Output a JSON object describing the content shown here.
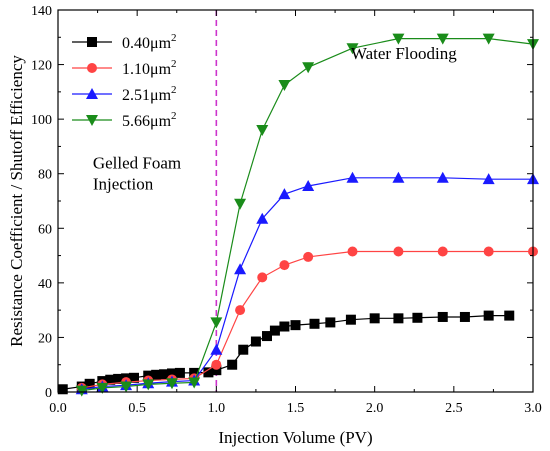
{
  "chart_data": {
    "type": "line",
    "xlabel": "Injection Volume (PV)",
    "ylabel": "Resistance Coefficient / Shutoff Efficiency",
    "xlim": [
      0.0,
      3.0
    ],
    "ylim": [
      0,
      140
    ],
    "xticks": [
      0.0,
      0.5,
      1.0,
      1.5,
      2.0,
      2.5,
      3.0
    ],
    "xtick_labels": [
      "0.0",
      "0.5",
      "1.0",
      "1.5",
      "2.0",
      "2.5",
      "3.0"
    ],
    "yticks": [
      0,
      20,
      40,
      60,
      80,
      100,
      120,
      140
    ],
    "ytick_labels": [
      "0",
      "20",
      "40",
      "60",
      "80",
      "100",
      "120",
      "140"
    ],
    "grid": false,
    "legend_position": "top-left",
    "divider_x": 1.0,
    "divider_color": "#cc33cc",
    "annotations": [
      {
        "lines": [
          "Gelled Foam",
          "Injection"
        ],
        "x": 0.22,
        "y": 82
      },
      {
        "lines": [
          "Water Flooding"
        ],
        "x": 1.85,
        "y": 122
      }
    ],
    "series": [
      {
        "name": "0.40μm²",
        "legend_base": "0.40μm",
        "legend_sup": "2",
        "color": "#000000",
        "marker": "square",
        "x": [
          0.03,
          0.15,
          0.2,
          0.28,
          0.33,
          0.38,
          0.43,
          0.48,
          0.57,
          0.62,
          0.67,
          0.72,
          0.77,
          0.86,
          0.95,
          1.0,
          1.1,
          1.17,
          1.25,
          1.32,
          1.37,
          1.43,
          1.5,
          1.62,
          1.72,
          1.85,
          2.0,
          2.15,
          2.27,
          2.43,
          2.57,
          2.72,
          2.85
        ],
        "y": [
          1.0,
          2.0,
          3.0,
          4.0,
          4.5,
          4.8,
          5.0,
          5.2,
          6.0,
          6.3,
          6.5,
          6.8,
          7.0,
          7.0,
          7.2,
          8.0,
          10.0,
          15.5,
          18.5,
          20.5,
          22.5,
          24.0,
          24.5,
          25.0,
          25.5,
          26.5,
          27.0,
          27.0,
          27.2,
          27.5,
          27.5,
          28.0,
          28.0
        ]
      },
      {
        "name": "1.10μm²",
        "legend_base": "1.10μm",
        "legend_sup": "2",
        "color": "#ff4444",
        "marker": "circle",
        "x": [
          0.15,
          0.28,
          0.43,
          0.57,
          0.72,
          0.86,
          1.0,
          1.15,
          1.29,
          1.43,
          1.58,
          1.86,
          2.15,
          2.43,
          2.72,
          3.0
        ],
        "y": [
          1.5,
          2.8,
          3.6,
          4.2,
          4.6,
          5.0,
          10.0,
          30.0,
          42.0,
          46.5,
          49.5,
          51.5,
          51.5,
          51.5,
          51.5,
          51.5
        ]
      },
      {
        "name": "2.51μm²",
        "legend_base": "2.51μm",
        "legend_sup": "2",
        "color": "#1a1aff",
        "marker": "triangle-up",
        "x": [
          0.15,
          0.28,
          0.43,
          0.57,
          0.72,
          0.86,
          1.0,
          1.15,
          1.29,
          1.43,
          1.58,
          1.86,
          2.15,
          2.43,
          2.72,
          3.0
        ],
        "y": [
          1.0,
          2.0,
          2.5,
          3.2,
          3.8,
          4.2,
          15.5,
          45.0,
          63.5,
          72.5,
          75.5,
          78.5,
          78.5,
          78.5,
          78.0,
          78.0
        ]
      },
      {
        "name": "5.66μm²",
        "legend_base": "5.66μm",
        "legend_sup": "2",
        "color": "#1a8c1a",
        "marker": "triangle-down",
        "x": [
          0.15,
          0.28,
          0.43,
          0.57,
          0.72,
          0.86,
          1.0,
          1.15,
          1.29,
          1.43,
          1.58,
          1.86,
          2.15,
          2.43,
          2.72,
          3.0
        ],
        "y": [
          0.5,
          1.5,
          2.0,
          2.8,
          3.2,
          3.5,
          25.5,
          69.0,
          96.0,
          112.5,
          119.0,
          126.0,
          129.5,
          129.5,
          129.5,
          127.5
        ]
      }
    ]
  }
}
